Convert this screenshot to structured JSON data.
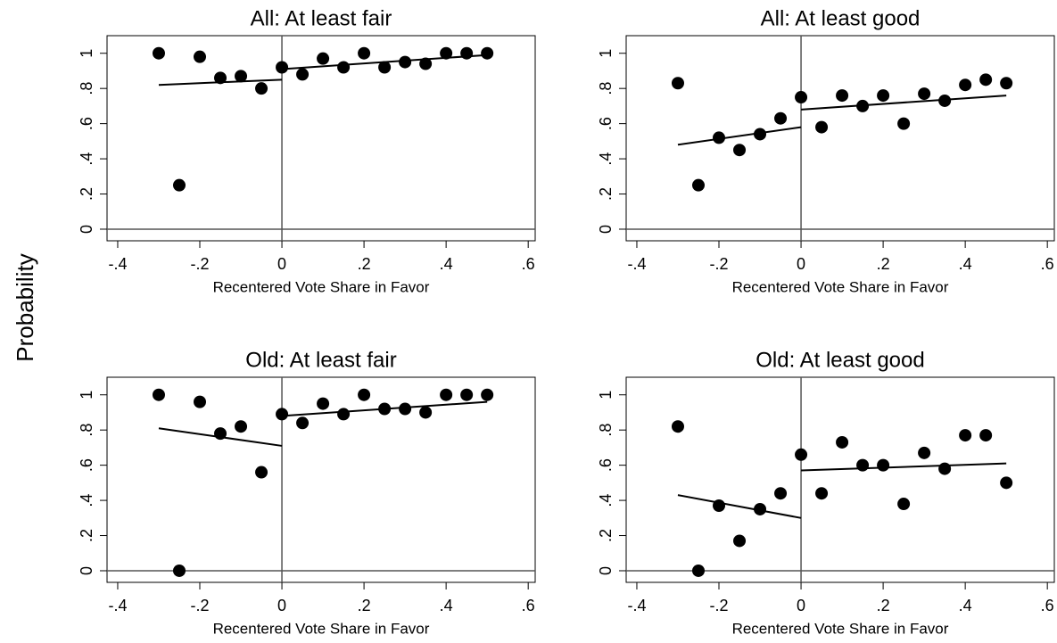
{
  "y_label": "Probability",
  "chart_data": [
    {
      "type": "scatter",
      "title": "All: At least fair",
      "x_label": "Recentered Vote Share in Favor",
      "x": [
        -0.3,
        -0.25,
        -0.2,
        -0.15,
        -0.1,
        -0.05,
        0,
        0.05,
        0.1,
        0.15,
        0.2,
        0.25,
        0.3,
        0.35,
        0.4,
        0.45,
        0.5
      ],
      "values": [
        1.0,
        0.25,
        0.98,
        0.86,
        0.87,
        0.8,
        0.92,
        0.88,
        0.97,
        0.92,
        1.0,
        0.92,
        0.95,
        0.94,
        1.0,
        1.0,
        1.0
      ],
      "color": "#000000",
      "fit_lines": [
        {
          "x": [
            -0.3,
            0
          ],
          "values": [
            0.82,
            0.85
          ]
        },
        {
          "x": [
            0,
            0.5
          ],
          "values": [
            0.91,
            0.99
          ]
        }
      ],
      "x_refline": 0,
      "y_refline": 0,
      "xlim": [
        -0.426,
        0.617
      ],
      "ylim": [
        -0.066,
        1.1
      ],
      "xticks": [
        {
          "value": -0.4,
          "label": "-.4"
        },
        {
          "value": -0.2,
          "label": "-.2"
        },
        0,
        {
          "value": 0.2,
          "label": ".2"
        },
        {
          "value": 0.4,
          "label": ".4"
        },
        {
          "value": 0.6,
          "label": ".6"
        }
      ],
      "yticks": [
        0,
        {
          "value": 0.2,
          "label": ".2"
        },
        {
          "value": 0.4,
          "label": ".4"
        },
        {
          "value": 0.6,
          "label": ".6"
        },
        {
          "value": 0.8,
          "label": ".8"
        },
        1
      ]
    },
    {
      "type": "scatter",
      "title": "All: At least good",
      "x_label": "Recentered Vote Share in Favor",
      "x": [
        -0.3,
        -0.25,
        -0.2,
        -0.15,
        -0.1,
        -0.05,
        0,
        0.05,
        0.1,
        0.15,
        0.2,
        0.25,
        0.3,
        0.35,
        0.4,
        0.45,
        0.5
      ],
      "values": [
        0.83,
        0.25,
        0.52,
        0.45,
        0.54,
        0.63,
        0.75,
        0.58,
        0.76,
        0.7,
        0.76,
        0.6,
        0.77,
        0.73,
        0.82,
        0.85,
        0.83
      ],
      "color": "#000000",
      "fit_lines": [
        {
          "x": [
            -0.3,
            0
          ],
          "values": [
            0.48,
            0.58
          ]
        },
        {
          "x": [
            0,
            0.5
          ],
          "values": [
            0.68,
            0.76
          ]
        }
      ],
      "x_refline": 0,
      "y_refline": 0,
      "xlim": [
        -0.426,
        0.617
      ],
      "ylim": [
        -0.066,
        1.1
      ],
      "xticks": [
        {
          "value": -0.4,
          "label": "-.4"
        },
        {
          "value": -0.2,
          "label": "-.2"
        },
        0,
        {
          "value": 0.2,
          "label": ".2"
        },
        {
          "value": 0.4,
          "label": ".4"
        },
        {
          "value": 0.6,
          "label": ".6"
        }
      ],
      "yticks": [
        0,
        {
          "value": 0.2,
          "label": ".2"
        },
        {
          "value": 0.4,
          "label": ".4"
        },
        {
          "value": 0.6,
          "label": ".6"
        },
        {
          "value": 0.8,
          "label": ".8"
        },
        1
      ]
    },
    {
      "type": "scatter",
      "title": "Old: At least fair",
      "x_label": "Recentered Vote Share in Favor",
      "x": [
        -0.3,
        -0.25,
        -0.2,
        -0.15,
        -0.1,
        -0.05,
        0,
        0.05,
        0.1,
        0.15,
        0.2,
        0.25,
        0.3,
        0.35,
        0.4,
        0.45,
        0.5
      ],
      "values": [
        1.0,
        0,
        0.96,
        0.78,
        0.82,
        0.56,
        0.89,
        0.84,
        0.95,
        0.89,
        1.0,
        0.92,
        0.92,
        0.9,
        1.0,
        1.0,
        1.0
      ],
      "color": "#000000",
      "fit_lines": [
        {
          "x": [
            -0.3,
            0
          ],
          "values": [
            0.81,
            0.71
          ]
        },
        {
          "x": [
            0,
            0.5
          ],
          "values": [
            0.88,
            0.96
          ]
        }
      ],
      "x_refline": 0,
      "y_refline": 0,
      "xlim": [
        -0.426,
        0.617
      ],
      "ylim": [
        -0.066,
        1.1
      ],
      "xticks": [
        {
          "value": -0.4,
          "label": "-.4"
        },
        {
          "value": -0.2,
          "label": "-.2"
        },
        0,
        {
          "value": 0.2,
          "label": ".2"
        },
        {
          "value": 0.4,
          "label": ".4"
        },
        {
          "value": 0.6,
          "label": ".6"
        }
      ],
      "yticks": [
        0,
        {
          "value": 0.2,
          "label": ".2"
        },
        {
          "value": 0.4,
          "label": ".4"
        },
        {
          "value": 0.6,
          "label": ".6"
        },
        {
          "value": 0.8,
          "label": ".8"
        },
        1
      ]
    },
    {
      "type": "scatter",
      "title": "Old: At least good",
      "x_label": "Recentered Vote Share in Favor",
      "x": [
        -0.3,
        -0.25,
        -0.2,
        -0.15,
        -0.1,
        -0.05,
        0,
        0.05,
        0.1,
        0.15,
        0.2,
        0.25,
        0.3,
        0.35,
        0.4,
        0.45,
        0.5
      ],
      "values": [
        0.82,
        0,
        0.37,
        0.17,
        0.35,
        0.44,
        0.66,
        0.44,
        0.73,
        0.6,
        0.6,
        0.38,
        0.67,
        0.58,
        0.77,
        0.77,
        0.5
      ],
      "color": "#000000",
      "fit_lines": [
        {
          "x": [
            -0.3,
            0
          ],
          "values": [
            0.43,
            0.3
          ]
        },
        {
          "x": [
            0,
            0.5
          ],
          "values": [
            0.57,
            0.61
          ]
        }
      ],
      "x_refline": 0,
      "y_refline": 0,
      "xlim": [
        -0.426,
        0.617
      ],
      "ylim": [
        -0.066,
        1.1
      ],
      "xticks": [
        {
          "value": -0.4,
          "label": "-.4"
        },
        {
          "value": -0.2,
          "label": "-.2"
        },
        0,
        {
          "value": 0.2,
          "label": ".2"
        },
        {
          "value": 0.4,
          "label": ".4"
        },
        {
          "value": 0.6,
          "label": ".6"
        }
      ],
      "yticks": [
        0,
        {
          "value": 0.2,
          "label": ".2"
        },
        {
          "value": 0.4,
          "label": ".4"
        },
        {
          "value": 0.6,
          "label": ".6"
        },
        {
          "value": 0.8,
          "label": ".8"
        },
        1
      ]
    }
  ]
}
